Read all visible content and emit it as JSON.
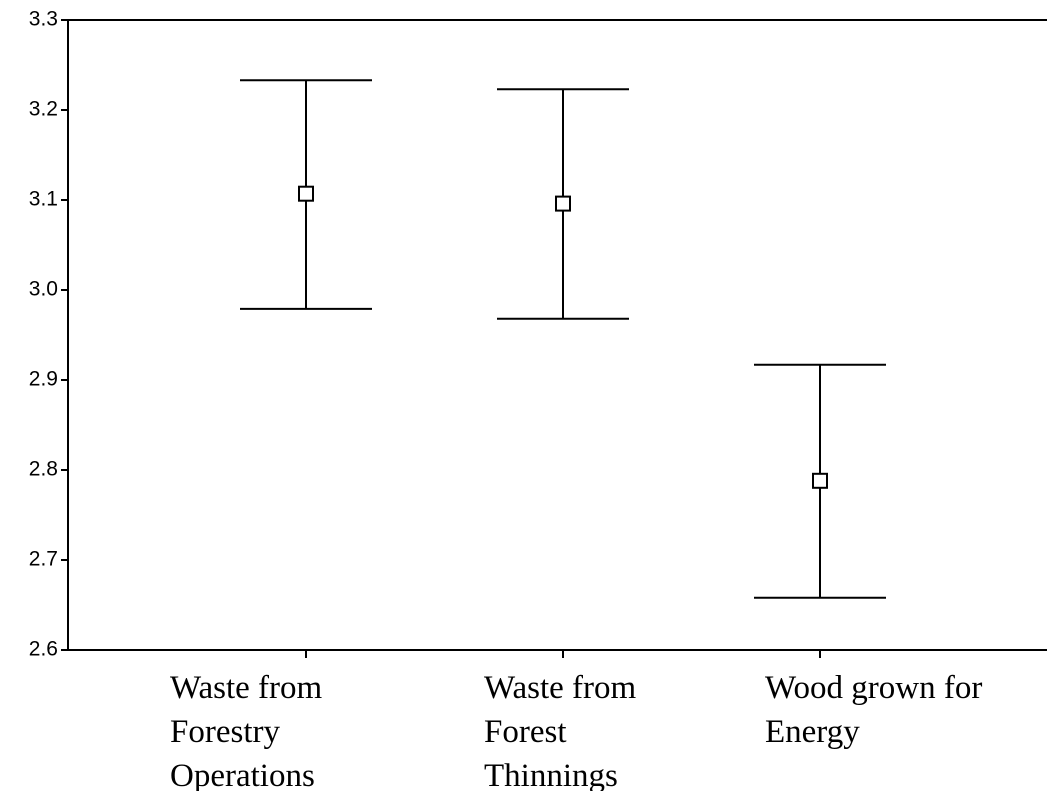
{
  "chart_data": {
    "type": "errorbar",
    "categories": [
      "Waste from Forestry Operations",
      "Waste from Forest Thinnings",
      "Wood grown for Energy"
    ],
    "values": [
      3.107,
      3.096,
      2.788
    ],
    "lower": [
      2.979,
      2.968,
      2.658
    ],
    "upper": [
      3.233,
      3.223,
      2.917
    ],
    "color": "#000000",
    "ylim": [
      2.6,
      3.3
    ],
    "yticks": [
      2.6,
      2.7,
      2.8,
      2.9,
      3.0,
      3.1,
      3.2,
      3.3
    ],
    "ytick_labels": [
      "2.6",
      "2.7",
      "2.8",
      "2.9",
      "3.0",
      "3.1",
      "3.2",
      "3.3"
    ],
    "grid": false
  }
}
